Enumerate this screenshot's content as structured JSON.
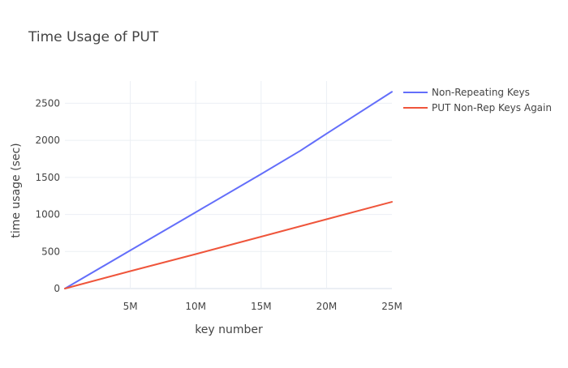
{
  "chart_data": {
    "type": "line",
    "title": "Time Usage of PUT",
    "xlabel": "key number",
    "ylabel": "time usage (sec)",
    "xlim": [
      0,
      25000000
    ],
    "ylim": [
      0,
      2800
    ],
    "x_ticks": [
      {
        "value": 5000000,
        "label": "5M"
      },
      {
        "value": 10000000,
        "label": "10M"
      },
      {
        "value": 15000000,
        "label": "15M"
      },
      {
        "value": 20000000,
        "label": "20M"
      },
      {
        "value": 25000000,
        "label": "25M"
      }
    ],
    "y_ticks": [
      {
        "value": 0,
        "label": "0"
      },
      {
        "value": 500,
        "label": "500"
      },
      {
        "value": 1000,
        "label": "1000"
      },
      {
        "value": 1500,
        "label": "1500"
      },
      {
        "value": 2000,
        "label": "2000"
      },
      {
        "value": 2500,
        "label": "2500"
      }
    ],
    "grid": true,
    "legend_position": "top-right",
    "series": [
      {
        "name": "Non-Repeating Keys",
        "color": "#636efa",
        "x": [
          0,
          5000000,
          10000000,
          15000000,
          18000000,
          20000000,
          25000000
        ],
        "y": [
          0,
          515,
          1030,
          1545,
          1860,
          2090,
          2655
        ]
      },
      {
        "name": "PUT Non-Rep Keys Again",
        "color": "#ef553b",
        "x": [
          0,
          5000000,
          10000000,
          15000000,
          20000000,
          25000000
        ],
        "y": [
          0,
          235,
          465,
          700,
          935,
          1170
        ]
      }
    ]
  }
}
